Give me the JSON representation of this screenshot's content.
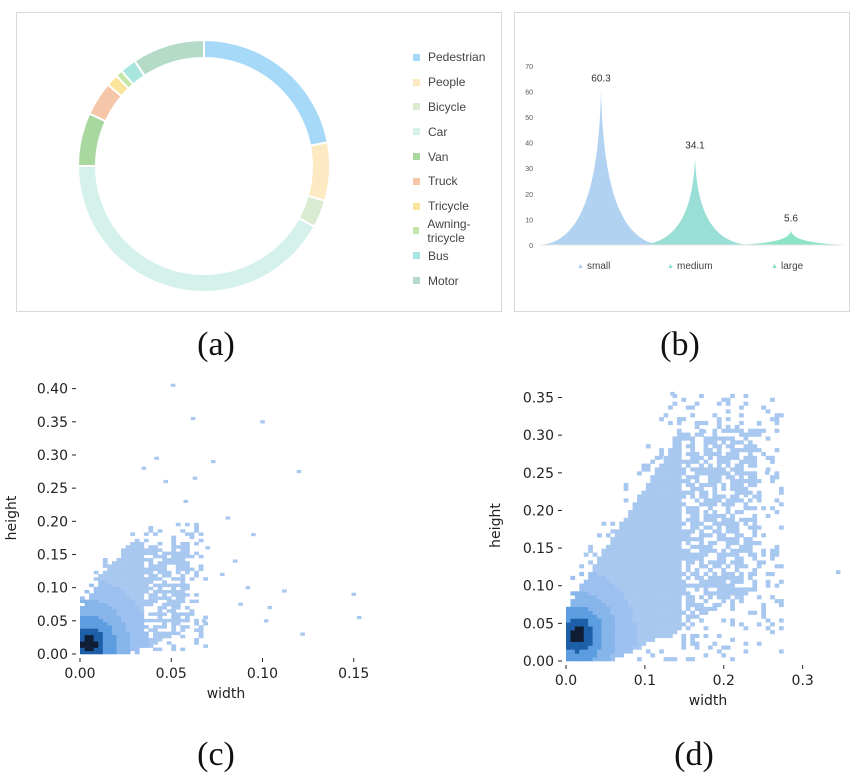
{
  "captions": {
    "a": "(a)",
    "b": "(b)",
    "c": "(c)",
    "d": "(d)"
  },
  "chart_data": [
    {
      "type": "pie",
      "variant": "donut",
      "legend_position": "right",
      "categories": [
        "Pedestrian",
        "People",
        "Bicycle",
        "Car",
        "Van",
        "Truck",
        "Tricycle",
        "Awning-tricycle",
        "Bus",
        "Motor"
      ],
      "values": [
        24.2,
        8.2,
        3.9,
        46.2,
        7.5,
        4.8,
        1.7,
        1.0,
        2.3,
        10.2
      ],
      "colors": [
        "#a6d8f7",
        "#fde9c2",
        "#d9ebd0",
        "#d5f1ec",
        "#a9d7a0",
        "#f6c6a8",
        "#fbe49c",
        "#c6e5a8",
        "#a9e5df",
        "#b5dbc8"
      ]
    },
    {
      "type": "area",
      "categories": [
        "small",
        "medium",
        "large"
      ],
      "values": [
        60.3,
        34.1,
        5.6
      ],
      "data_labels": [
        "60.3",
        "34.1",
        "5.6"
      ],
      "ylim": [
        0,
        70
      ],
      "yticks": [
        "0",
        "10",
        "20",
        "30",
        "40",
        "50",
        "60",
        "70"
      ],
      "colors": [
        "#a9cdf0",
        "#8fdcd2",
        "#7fe0c2"
      ],
      "legend_position": "bottom"
    },
    {
      "type": "heatmap",
      "xlabel": "width",
      "ylabel": "height",
      "xlim": [
        0,
        0.16
      ],
      "ylim": [
        0,
        0.41
      ],
      "xticks": [
        0.0,
        0.05,
        0.1,
        0.15
      ],
      "xtick_labels": [
        "0.00",
        "0.05",
        "0.10",
        "0.15"
      ],
      "yticks": [
        0.0,
        0.05,
        0.1,
        0.15,
        0.2,
        0.25,
        0.3,
        0.35,
        0.4
      ],
      "ytick_labels": [
        "0.00",
        "0.05",
        "0.10",
        "0.15",
        "0.20",
        "0.25",
        "0.30",
        "0.35",
        "0.40"
      ],
      "dense_region": {
        "x_max": 0.06,
        "y_max": 0.17
      },
      "peak": [
        0.005,
        0.015
      ],
      "sparse_points": [
        [
          0.051,
          0.405
        ],
        [
          0.062,
          0.355
        ],
        [
          0.1,
          0.35
        ],
        [
          0.12,
          0.275
        ],
        [
          0.15,
          0.09
        ],
        [
          0.153,
          0.055
        ],
        [
          0.122,
          0.03
        ],
        [
          0.104,
          0.07
        ],
        [
          0.092,
          0.1
        ],
        [
          0.081,
          0.205
        ],
        [
          0.073,
          0.29
        ],
        [
          0.063,
          0.265
        ],
        [
          0.042,
          0.295
        ],
        [
          0.035,
          0.28
        ],
        [
          0.047,
          0.26
        ],
        [
          0.058,
          0.23
        ],
        [
          0.07,
          0.16
        ],
        [
          0.085,
          0.14
        ],
        [
          0.078,
          0.12
        ],
        [
          0.088,
          0.075
        ],
        [
          0.068,
          0.05
        ],
        [
          0.095,
          0.18
        ],
        [
          0.102,
          0.05
        ],
        [
          0.112,
          0.095
        ]
      ]
    },
    {
      "type": "heatmap",
      "xlabel": "width",
      "ylabel": "height",
      "xlim": [
        0,
        0.36
      ],
      "ylim": [
        0,
        0.36
      ],
      "xticks": [
        0.0,
        0.1,
        0.2,
        0.3
      ],
      "xtick_labels": [
        "0.0",
        "0.1",
        "0.2",
        "0.3"
      ],
      "yticks": [
        0.0,
        0.05,
        0.1,
        0.15,
        0.2,
        0.25,
        0.3,
        0.35
      ],
      "ytick_labels": [
        "0.00",
        "0.05",
        "0.10",
        "0.15",
        "0.20",
        "0.25",
        "0.30",
        "0.35"
      ],
      "dense_region": {
        "x_max": 0.24,
        "y_max": 0.31
      },
      "peak": [
        0.015,
        0.035
      ],
      "sparse_points": [
        [
          0.135,
          0.355
        ],
        [
          0.175,
          0.305
        ],
        [
          0.195,
          0.285
        ],
        [
          0.215,
          0.28
        ],
        [
          0.245,
          0.315
        ],
        [
          0.255,
          0.25
        ],
        [
          0.235,
          0.27
        ],
        [
          0.16,
          0.285
        ],
        [
          0.12,
          0.27
        ],
        [
          0.345,
          0.118
        ],
        [
          0.228,
          0.22
        ]
      ]
    }
  ]
}
